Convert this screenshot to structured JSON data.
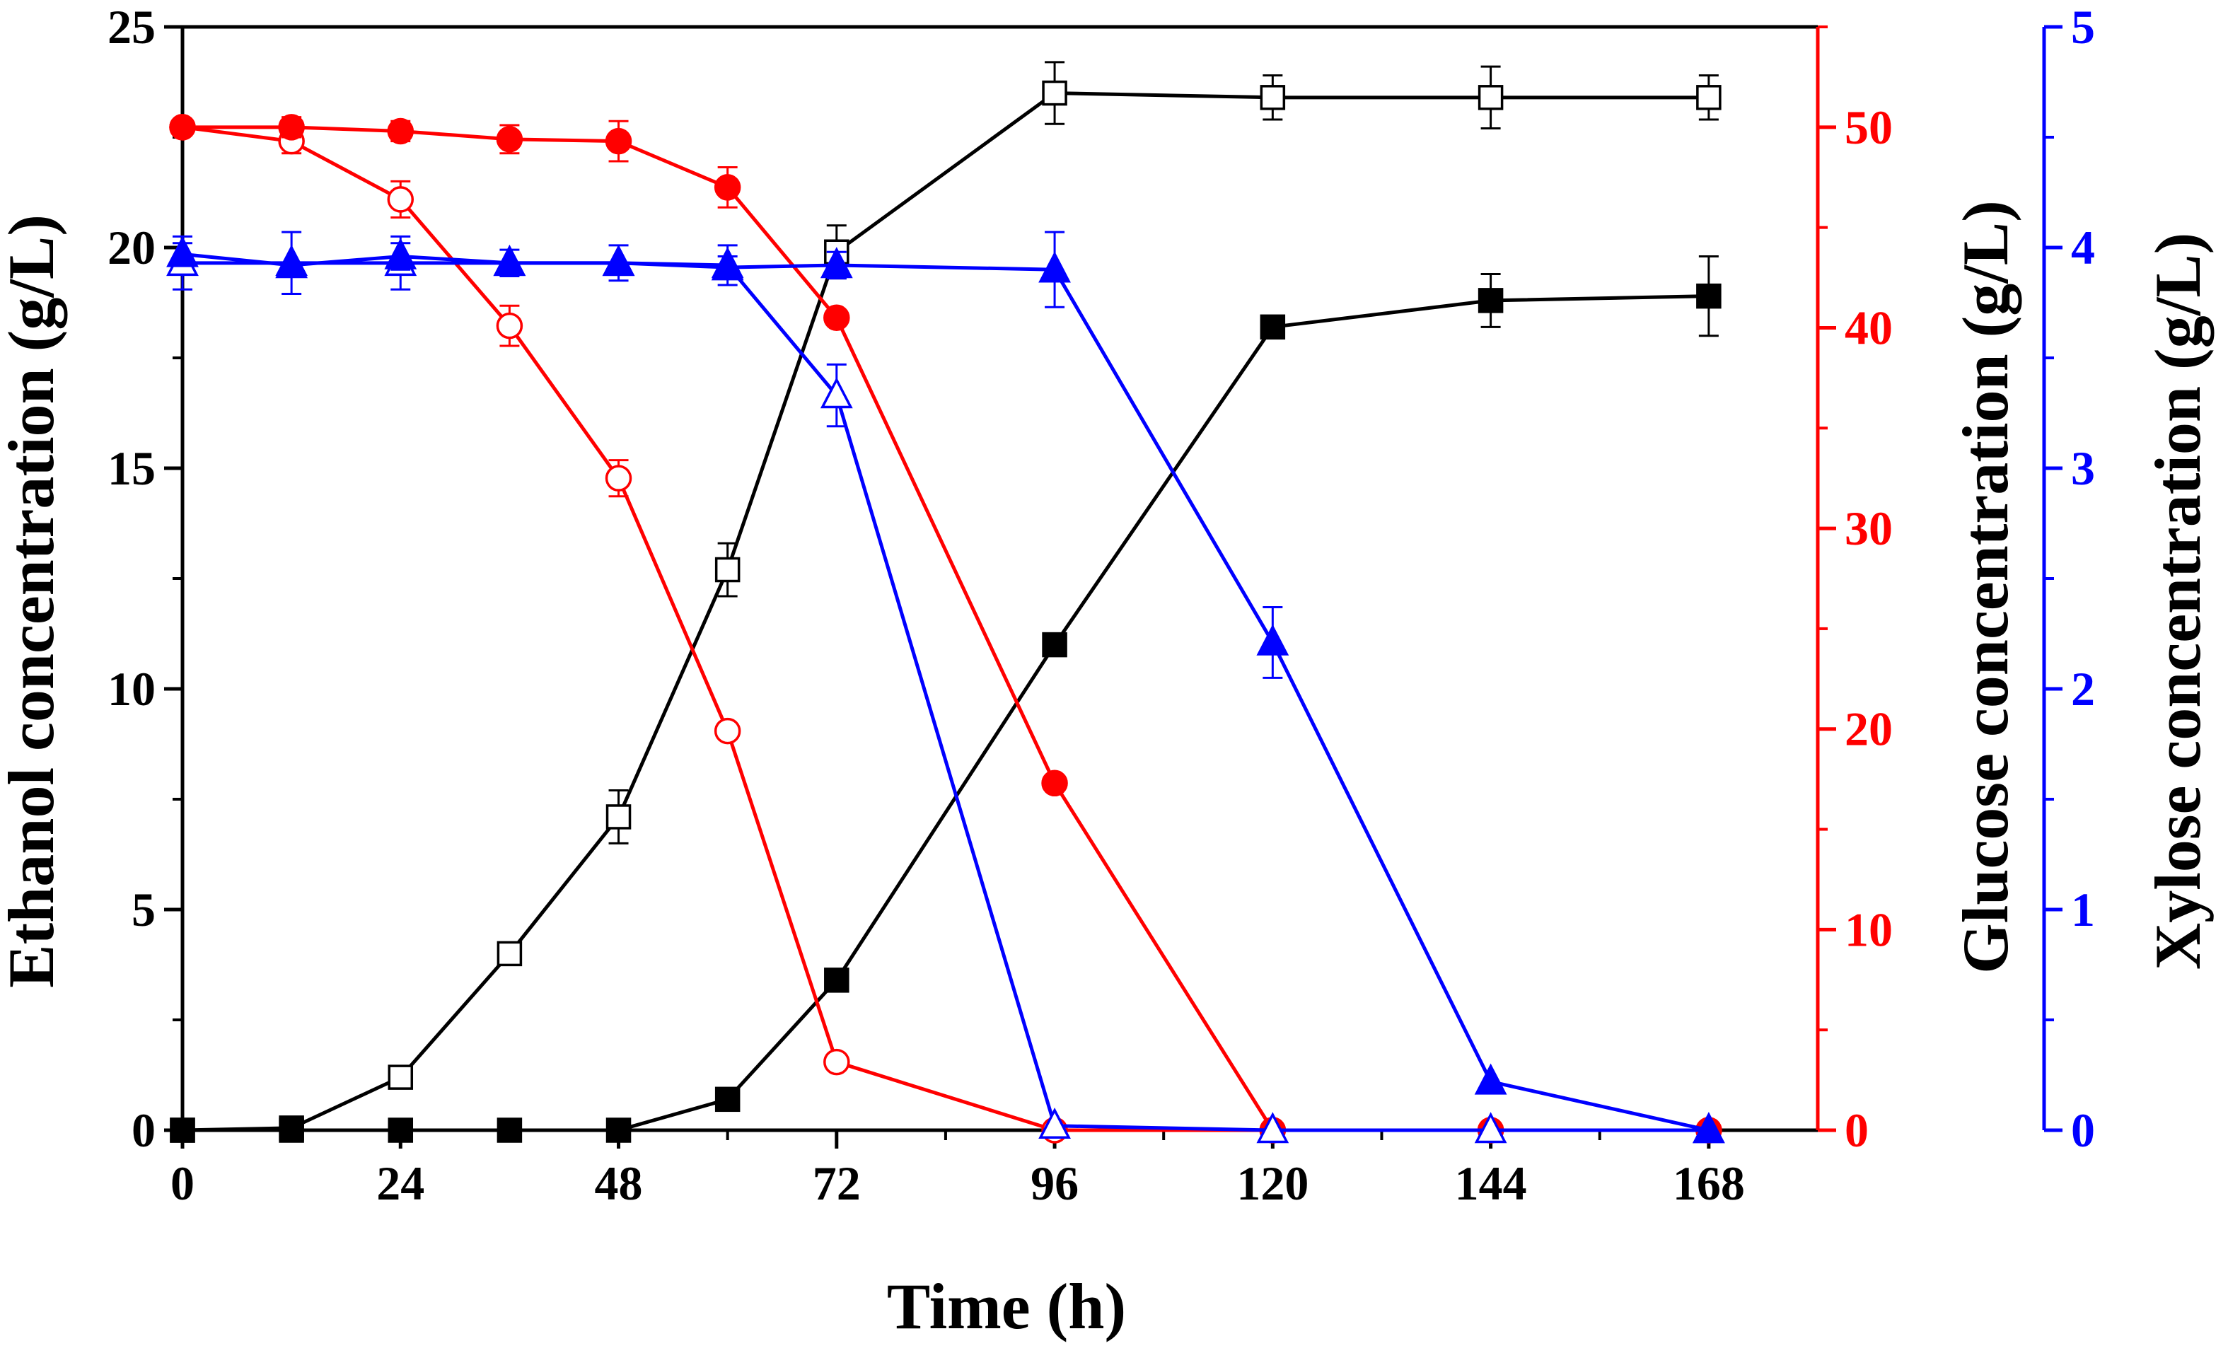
{
  "colors": {
    "ethanol": "#000000",
    "glucose": "#ff0000",
    "xylose": "#0000ff"
  },
  "chart_data": {
    "type": "line",
    "title": "",
    "x": [
      0,
      12,
      24,
      36,
      48,
      60,
      72,
      96,
      120,
      144,
      168
    ],
    "xlabel": "Time (h)",
    "xlim": [
      0,
      180
    ],
    "xticks": [
      "0",
      "24",
      "48",
      "72",
      "96",
      "120",
      "144",
      "168"
    ],
    "axes": {
      "ethanol": {
        "label": "Ethanol concentration (g/L)",
        "ylim": [
          0,
          25
        ],
        "ticks": [
          "0",
          "5",
          "10",
          "15",
          "20",
          "25"
        ]
      },
      "glucose": {
        "label": "Glucose concentration (g/L)",
        "ylim": [
          0,
          55
        ],
        "ticks": [
          "0",
          "10",
          "20",
          "30",
          "40",
          "50"
        ]
      },
      "xylose": {
        "label": "Xylose concentration (g/L)",
        "ylim": [
          0,
          5
        ],
        "ticks": [
          "0",
          "1",
          "2",
          "3",
          "4",
          "5"
        ]
      }
    },
    "series": [
      {
        "name": "ethanol-open",
        "axis": "ethanol",
        "marker": "square-open",
        "x": [
          0,
          12,
          24,
          36,
          48,
          60,
          72,
          96,
          120,
          144,
          168
        ],
        "values": [
          0,
          0.05,
          1.2,
          4.0,
          7.1,
          12.7,
          19.9,
          23.5,
          23.4,
          23.4,
          23.4
        ],
        "errors": [
          0,
          0,
          0,
          0,
          0.6,
          0.6,
          0.6,
          0.7,
          0.5,
          0.7,
          0.5
        ]
      },
      {
        "name": "ethanol-filled",
        "axis": "ethanol",
        "marker": "square-filled",
        "x": [
          0,
          12,
          24,
          36,
          48,
          60,
          72,
          96,
          120,
          144,
          168
        ],
        "values": [
          0,
          0,
          0,
          0,
          0,
          0.7,
          3.4,
          11.0,
          18.2,
          18.8,
          18.9
        ],
        "errors": [
          0,
          0,
          0,
          0,
          0,
          0,
          0,
          0,
          0,
          0.6,
          0.9
        ]
      },
      {
        "name": "glucose-open",
        "axis": "glucose",
        "marker": "circle-open",
        "x": [
          0,
          12,
          24,
          36,
          48,
          60,
          72,
          96,
          120,
          144,
          168
        ],
        "values": [
          50,
          49.3,
          46.4,
          40.1,
          32.5,
          19.9,
          3.4,
          0,
          0,
          0,
          0
        ],
        "errors": [
          0,
          0.6,
          0.9,
          1.0,
          0.9,
          0,
          0,
          0,
          0,
          0,
          0
        ]
      },
      {
        "name": "glucose-filled",
        "axis": "glucose",
        "marker": "circle-filled",
        "x": [
          0,
          12,
          24,
          36,
          48,
          60,
          72,
          96,
          120,
          144,
          168
        ],
        "values": [
          50,
          50,
          49.8,
          49.4,
          49.3,
          47.0,
          40.5,
          17.3,
          0,
          0,
          0
        ],
        "errors": [
          0,
          0.5,
          0.5,
          0.7,
          1.0,
          1.0,
          0,
          0,
          0,
          0,
          0
        ]
      },
      {
        "name": "xylose-open",
        "axis": "xylose",
        "marker": "triangle-open",
        "x": [
          0,
          12,
          24,
          36,
          48,
          60,
          72,
          96,
          120,
          144,
          168
        ],
        "values": [
          3.93,
          3.93,
          3.93,
          3.93,
          3.93,
          3.92,
          3.33,
          0.02,
          0,
          0,
          0
        ],
        "errors": [
          0.12,
          0.14,
          0.12,
          0.06,
          0.08,
          0.09,
          0.14,
          0,
          0,
          0,
          0
        ]
      },
      {
        "name": "xylose-filled",
        "axis": "xylose",
        "marker": "triangle-filled",
        "x": [
          0,
          12,
          24,
          36,
          48,
          60,
          72,
          96,
          120,
          144,
          168
        ],
        "values": [
          3.97,
          3.92,
          3.96,
          3.93,
          3.93,
          3.91,
          3.92,
          3.9,
          2.21,
          0.22,
          0
        ],
        "errors": [
          0.05,
          0,
          0.06,
          0,
          0,
          0.05,
          0.06,
          0.17,
          0.16,
          0,
          0
        ]
      }
    ]
  }
}
